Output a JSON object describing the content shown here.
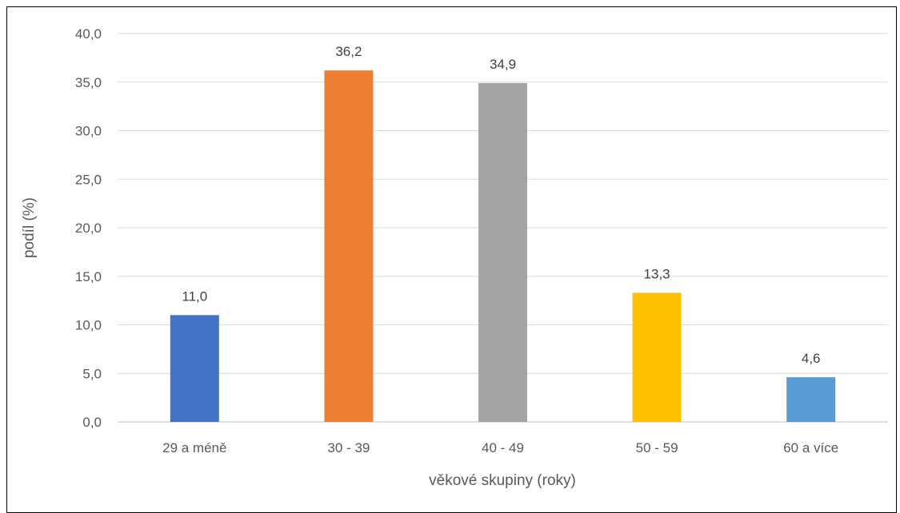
{
  "chart_data": {
    "type": "bar",
    "categories": [
      "29 a méně",
      "30 - 39",
      "40 - 49",
      "50 - 59",
      "60 a více"
    ],
    "values": [
      11.0,
      36.2,
      34.9,
      13.3,
      4.6
    ],
    "value_labels": [
      "11,0",
      "36,2",
      "34,9",
      "13,3",
      "4,6"
    ],
    "colors": [
      "#4472C4",
      "#ED7D31",
      "#A5A5A5",
      "#FFC000",
      "#5B9BD5"
    ],
    "title": "",
    "xlabel": "věkové skupiny (roky)",
    "ylabel": "podíl (%)",
    "ylim": [
      0,
      40
    ],
    "yticks": [
      0,
      5,
      10,
      15,
      20,
      25,
      30,
      35,
      40
    ],
    "ytick_labels": [
      "0,0",
      "5,0",
      "10,0",
      "15,0",
      "20,0",
      "25,0",
      "30,0",
      "35,0",
      "40,0"
    ],
    "grid": true,
    "legend": "none"
  }
}
